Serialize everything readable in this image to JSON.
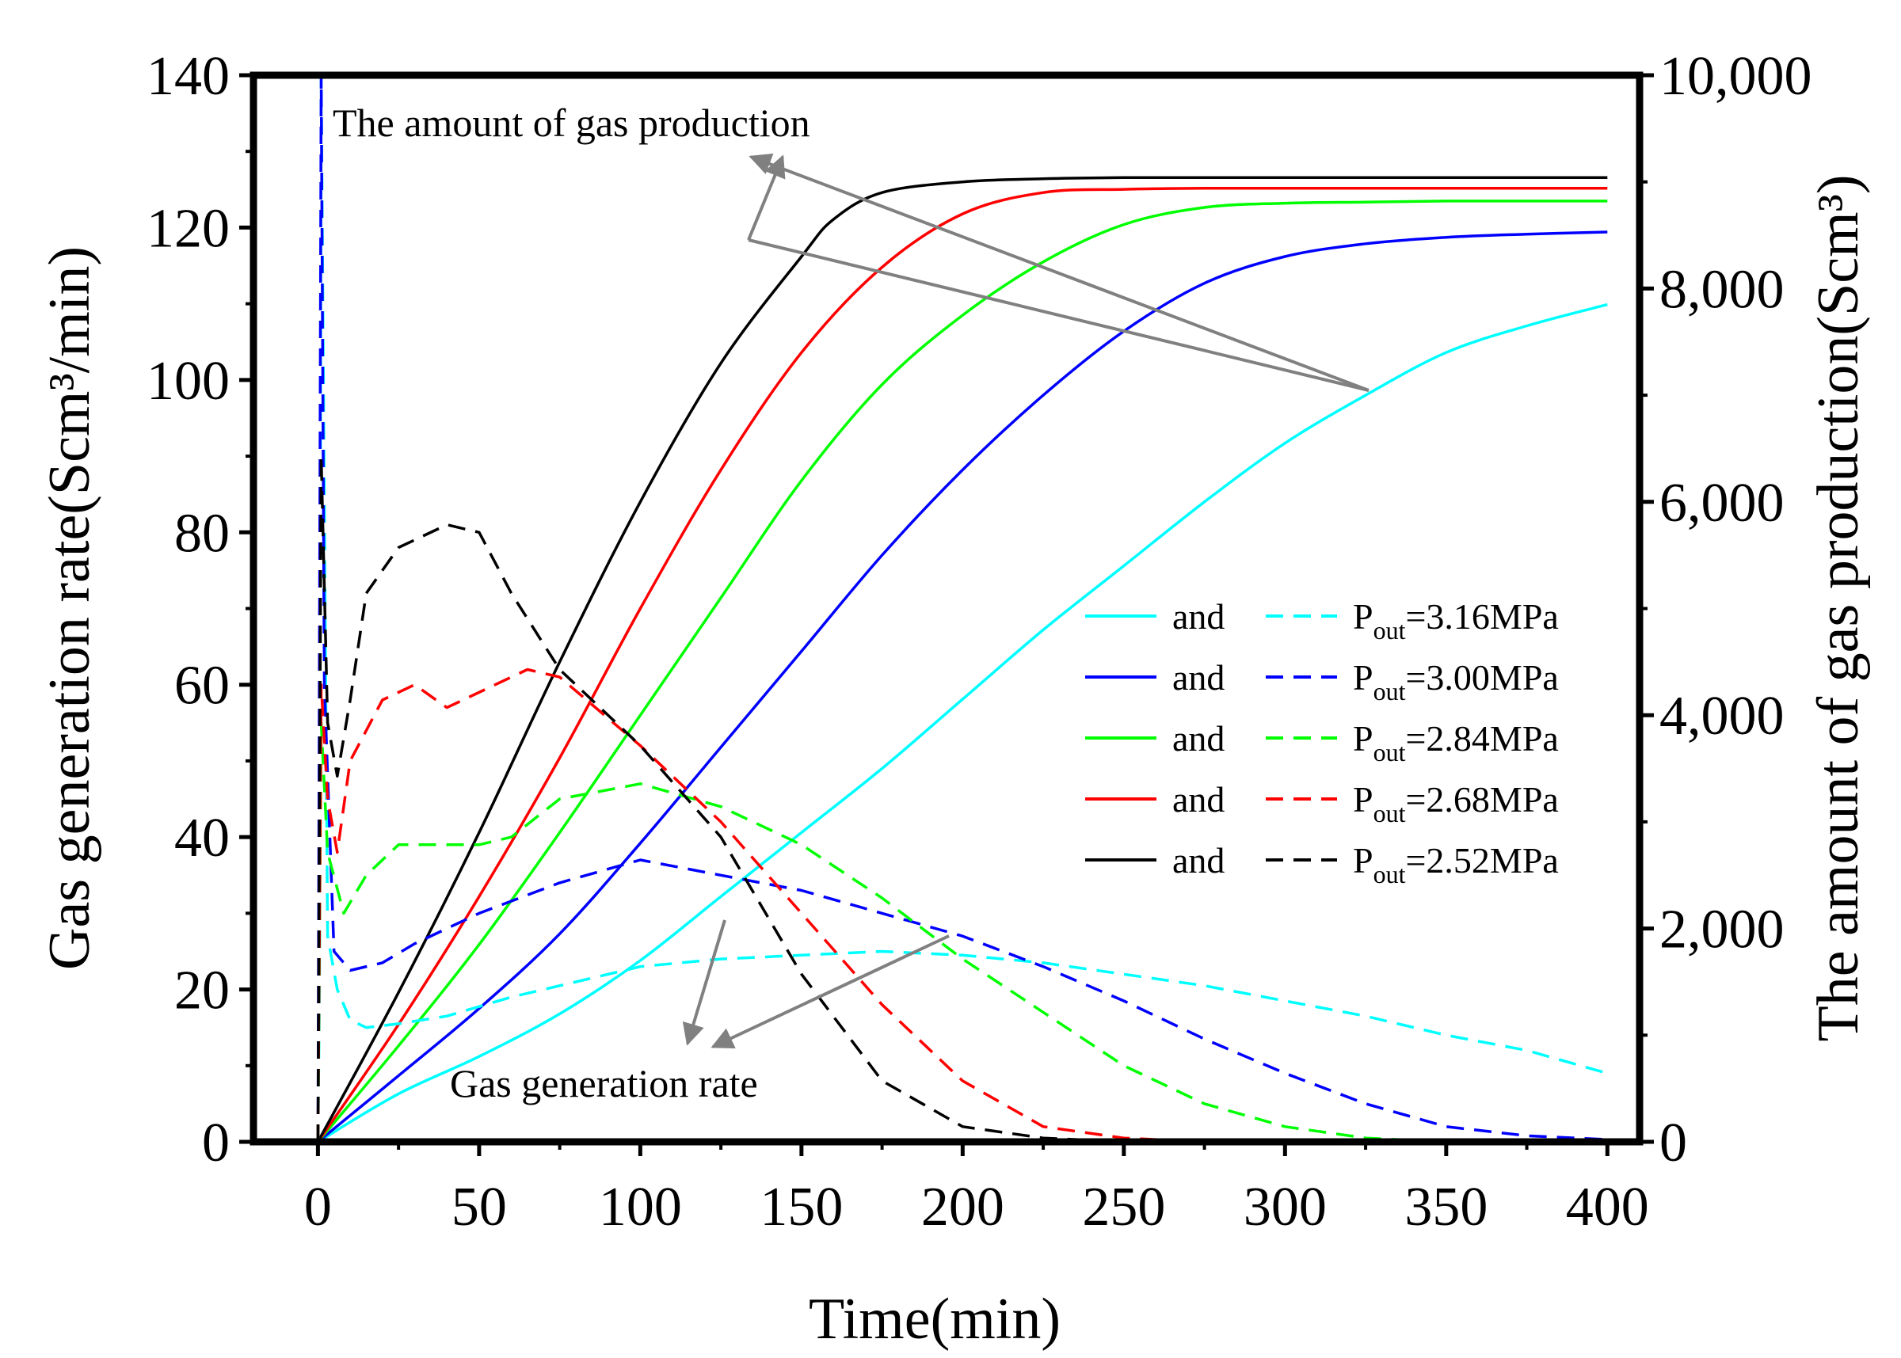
{
  "chart_data": {
    "type": "line",
    "xlabel": "Time(min)",
    "ylabel_left": "Gas generation rate(Scm³/min)",
    "ylabel_right": "The amount of gas production(Scm³)",
    "xlim": [
      -20,
      410
    ],
    "ylim_left": [
      0,
      140
    ],
    "ylim_right": [
      0,
      10000
    ],
    "x_ticks": [
      0,
      50,
      100,
      150,
      200,
      250,
      300,
      350,
      400
    ],
    "x_tick_labels": [
      "0",
      "50",
      "100",
      "150",
      "200",
      "250",
      "300",
      "350",
      "400"
    ],
    "y_left_ticks": [
      0,
      20,
      40,
      60,
      80,
      100,
      120,
      140
    ],
    "y_left_tick_labels": [
      "0",
      "20",
      "40",
      "60",
      "80",
      "100",
      "120",
      "140"
    ],
    "y_right_ticks": [
      0,
      2000,
      4000,
      6000,
      8000,
      10000
    ],
    "y_right_tick_labels": [
      "0",
      "2,000",
      "4,000",
      "6,000",
      "8,000",
      "10,000"
    ],
    "grid": false,
    "legend_position": "right-middle",
    "annotations": {
      "amount": "The amount of gas production",
      "rate": "Gas generation rate"
    },
    "legend": [
      {
        "solid_label": "and",
        "dash_label": "=3.16MPa",
        "p_base": "P",
        "p_sub": "out",
        "color": "#00ffff"
      },
      {
        "solid_label": "and",
        "dash_label": "=3.00MPa",
        "p_base": "P",
        "p_sub": "out",
        "color": "#0000ff"
      },
      {
        "solid_label": "and",
        "dash_label": "=2.84MPa",
        "p_base": "P",
        "p_sub": "out",
        "color": "#00ff00"
      },
      {
        "solid_label": "and",
        "dash_label": "=2.68MPa",
        "p_base": "P",
        "p_sub": "out",
        "color": "#ff0000"
      },
      {
        "solid_label": "and",
        "dash_label": "=2.52MPa",
        "p_base": "P",
        "p_sub": "out",
        "color": "#000000"
      }
    ],
    "series_amount": [
      {
        "color": "#00ffff",
        "axis": "right",
        "x": [
          0,
          25,
          50,
          75,
          100,
          125,
          150,
          175,
          200,
          225,
          250,
          275,
          300,
          325,
          350,
          375,
          400
        ],
        "y": [
          0,
          450,
          800,
          1200,
          1700,
          2300,
          2900,
          3500,
          4150,
          4800,
          5400,
          6000,
          6550,
          7000,
          7400,
          7650,
          7850
        ]
      },
      {
        "color": "#0000ff",
        "axis": "right",
        "x": [
          0,
          25,
          50,
          75,
          100,
          125,
          150,
          175,
          200,
          225,
          250,
          275,
          300,
          325,
          350,
          375,
          400
        ],
        "y": [
          0,
          620,
          1250,
          1950,
          2800,
          3700,
          4600,
          5500,
          6300,
          7000,
          7600,
          8050,
          8300,
          8420,
          8480,
          8510,
          8530
        ]
      },
      {
        "color": "#00ff00",
        "axis": "right",
        "x": [
          0,
          25,
          50,
          75,
          100,
          125,
          150,
          175,
          200,
          225,
          250,
          275,
          300,
          325,
          350,
          375,
          400
        ],
        "y": [
          0,
          900,
          1850,
          2900,
          4000,
          5100,
          6200,
          7100,
          7750,
          8250,
          8600,
          8760,
          8800,
          8810,
          8820,
          8820,
          8820
        ]
      },
      {
        "color": "#ff0000",
        "axis": "right",
        "x": [
          0,
          25,
          50,
          75,
          100,
          125,
          150,
          175,
          200,
          225,
          250,
          275,
          300,
          325,
          350,
          375,
          400
        ],
        "y": [
          0,
          1100,
          2300,
          3600,
          5000,
          6300,
          7400,
          8200,
          8700,
          8900,
          8930,
          8940,
          8940,
          8940,
          8940,
          8940,
          8940
        ]
      },
      {
        "color": "#000000",
        "axis": "right",
        "x": [
          0,
          25,
          50,
          75,
          100,
          125,
          150,
          160,
          175,
          200,
          225,
          250,
          275,
          300,
          325,
          350,
          375,
          400
        ],
        "y": [
          0,
          1400,
          2900,
          4500,
          6000,
          7300,
          8300,
          8650,
          8900,
          9000,
          9030,
          9040,
          9040,
          9040,
          9040,
          9040,
          9040,
          9040
        ]
      }
    ],
    "series_rate": [
      {
        "color": "#00ffff",
        "axis": "left",
        "x": [
          0,
          0.5,
          1,
          3,
          6,
          10,
          15,
          25,
          40,
          60,
          80,
          100,
          125,
          150,
          175,
          200,
          225,
          250,
          275,
          300,
          325,
          350,
          375,
          400
        ],
        "y": [
          0,
          20,
          140,
          27,
          20,
          16,
          15,
          15.5,
          16.5,
          19,
          21,
          23,
          24,
          24.5,
          25,
          24.5,
          23.5,
          22,
          20.5,
          18.5,
          16.5,
          14,
          12,
          9
        ]
      },
      {
        "color": "#0000ff",
        "axis": "left",
        "x": [
          0,
          1,
          2,
          5,
          10,
          20,
          30,
          50,
          75,
          100,
          125,
          150,
          175,
          200,
          225,
          250,
          275,
          300,
          325,
          350,
          375,
          400
        ],
        "y": [
          0,
          140,
          60,
          25,
          22.5,
          23.5,
          26,
          30,
          34,
          37,
          35,
          33,
          30,
          27,
          23,
          18.5,
          13.5,
          9,
          5,
          2,
          0.8,
          0.3
        ]
      },
      {
        "color": "#00ff00",
        "axis": "left",
        "x": [
          0,
          1,
          3,
          8,
          15,
          25,
          35,
          50,
          60,
          75,
          100,
          125,
          150,
          175,
          200,
          225,
          250,
          275,
          300,
          325,
          350,
          375,
          400
        ],
        "y": [
          0,
          55,
          38,
          30,
          35,
          39,
          39,
          39,
          40,
          45,
          47,
          44,
          39,
          32,
          24,
          17,
          10,
          5,
          2,
          0.5,
          0,
          0,
          0
        ]
      },
      {
        "color": "#ff0000",
        "axis": "left",
        "x": [
          0,
          1,
          3,
          6,
          10,
          20,
          30,
          40,
          55,
          65,
          75,
          100,
          125,
          150,
          175,
          200,
          225,
          250,
          275,
          300,
          325,
          350,
          375,
          400
        ],
        "y": [
          0,
          60,
          45,
          38,
          50,
          58,
          60,
          57,
          60,
          62,
          61,
          52,
          42,
          30,
          18,
          8,
          2,
          0.5,
          0,
          0,
          0,
          0,
          0,
          0
        ]
      },
      {
        "color": "#000000",
        "axis": "left",
        "x": [
          0,
          1,
          3,
          6,
          10,
          15,
          25,
          40,
          50,
          60,
          75,
          100,
          125,
          150,
          175,
          200,
          225,
          250,
          300,
          350,
          400
        ],
        "y": [
          0,
          90,
          55,
          48,
          58,
          72,
          78,
          81,
          80,
          72,
          62,
          52,
          40,
          22,
          8,
          2,
          0.5,
          0,
          0,
          0,
          0
        ]
      }
    ]
  }
}
